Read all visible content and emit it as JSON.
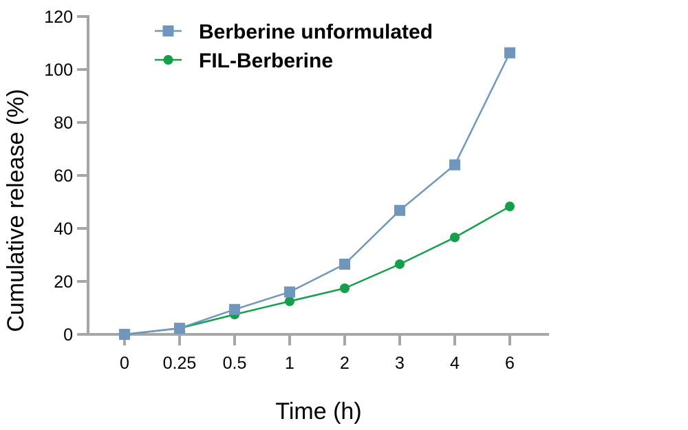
{
  "chart_data": {
    "type": "line",
    "title": "",
    "xlabel": "Time (h)",
    "ylabel": "Cumulative release (%)",
    "categories": [
      "0",
      "0.25",
      "0.5",
      "1",
      "2",
      "3",
      "4",
      "6"
    ],
    "ylim": [
      0,
      120
    ],
    "yticks": [
      0,
      20,
      40,
      60,
      80,
      100,
      120
    ],
    "grid": false,
    "legend_position": "top-left inside",
    "series": [
      {
        "name": "Berberine unformulated",
        "marker": "square",
        "color": "#6f97bd",
        "values": [
          0,
          2.3,
          9.4,
          16.0,
          26.5,
          46.8,
          64.0,
          106.3
        ]
      },
      {
        "name": "FIL-Berberine",
        "marker": "circle",
        "color": "#14a04a",
        "values": [
          0,
          2.3,
          7.5,
          12.5,
          17.4,
          26.5,
          36.6,
          48.3
        ]
      }
    ]
  },
  "colors": {
    "axis": "#a6a6a6",
    "text": "#000000"
  }
}
